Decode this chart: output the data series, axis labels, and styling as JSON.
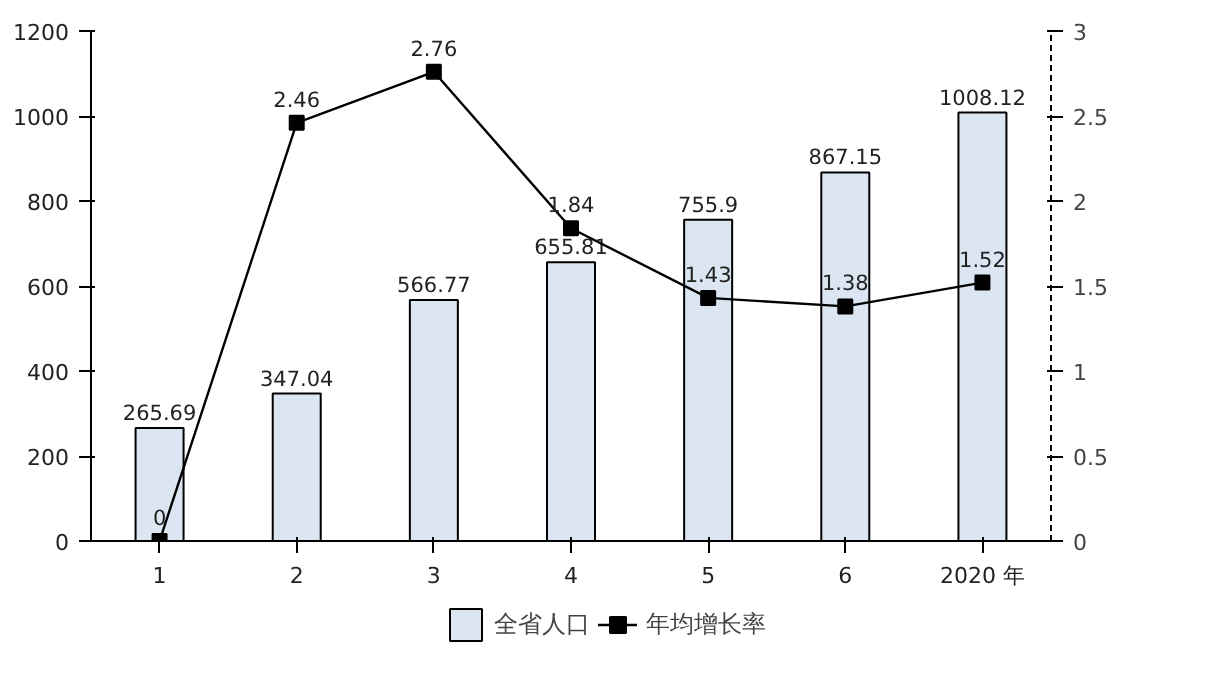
{
  "chart_data": {
    "type": "bar",
    "categories": [
      "1",
      "2",
      "3",
      "4",
      "5",
      "6",
      "2020 年"
    ],
    "series": [
      {
        "name": "全省人口",
        "color": "#dce6f2",
        "values": [
          265.69,
          347.04,
          566.77,
          655.81,
          755.9,
          867.15,
          1008.12
        ]
      },
      {
        "name": "年均增长率",
        "type": "line",
        "axis": "y2",
        "color": "#000000",
        "marker": "square",
        "line_style": "solid",
        "values": [
          0,
          2.46,
          2.76,
          1.84,
          1.43,
          1.38,
          1.52
        ]
      }
    ],
    "ylim": [
      0,
      1200
    ],
    "yticks": [
      0,
      200,
      400,
      600,
      800,
      1000,
      1200
    ],
    "y2lim": [
      0,
      3
    ],
    "y2ticks": [
      0,
      0.5,
      1,
      1.5,
      2,
      2.5,
      3
    ],
    "data_labels": true,
    "legend": "bottom",
    "grid": false
  }
}
